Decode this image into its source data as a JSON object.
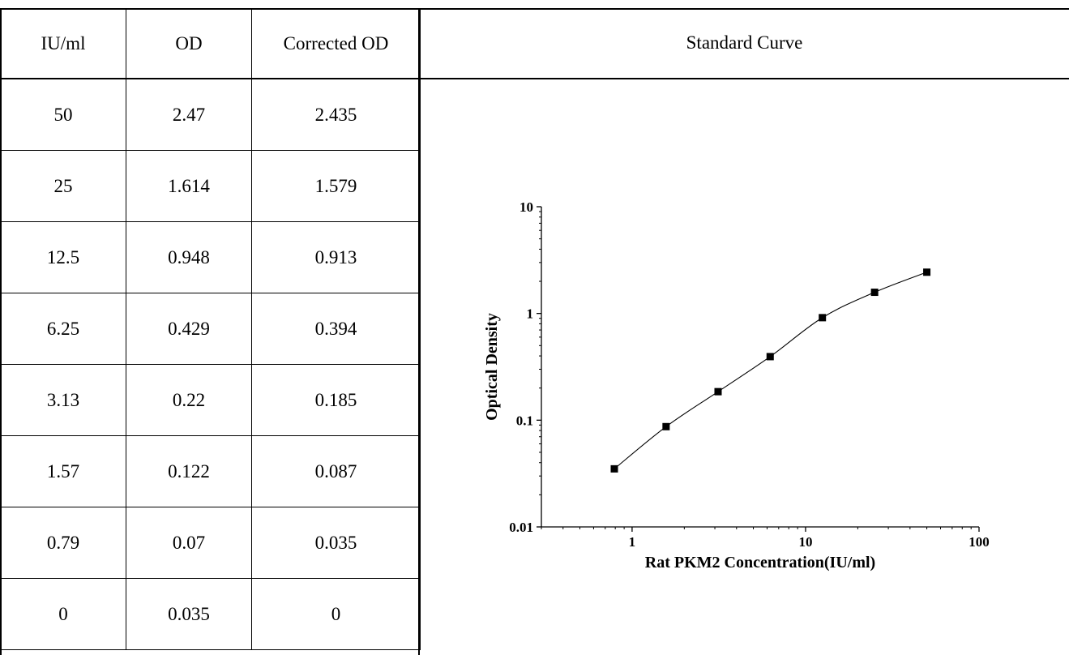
{
  "table": {
    "headers": [
      "IU/ml",
      "OD",
      "Corrected OD"
    ],
    "rows": [
      [
        "50",
        "2.47",
        "2.435"
      ],
      [
        "25",
        "1.614",
        "1.579"
      ],
      [
        "12.5",
        "0.948",
        "0.913"
      ],
      [
        "6.25",
        "0.429",
        "0.394"
      ],
      [
        "3.13",
        "0.22",
        "0.185"
      ],
      [
        "1.57",
        "0.122",
        "0.087"
      ],
      [
        "0.79",
        "0.07",
        "0.035"
      ],
      [
        "0",
        "0.035",
        "0"
      ]
    ]
  },
  "curve_heading": "Standard Curve",
  "chart_data": {
    "type": "scatter",
    "title": "",
    "xlabel": "Rat PKM2 Concentration(IU/ml)",
    "ylabel": "Optical Density",
    "xscale": "log",
    "yscale": "log",
    "xlim": [
      0.3,
      100
    ],
    "ylim": [
      0.01,
      10
    ],
    "x_ticks": [
      1,
      10,
      100
    ],
    "x_tick_labels": [
      "1",
      "10",
      "100"
    ],
    "y_ticks": [
      0.01,
      0.1,
      1,
      10
    ],
    "y_tick_labels": [
      "0.01",
      "0.1",
      "1",
      "10"
    ],
    "grid": false,
    "series": [
      {
        "x": [
          0.79,
          1.57,
          3.13,
          6.25,
          12.5,
          25,
          50
        ],
        "y": [
          0.035,
          0.087,
          0.185,
          0.394,
          0.913,
          1.579,
          2.435
        ],
        "marker": "square",
        "line": "smooth",
        "color": "#000000"
      }
    ]
  }
}
